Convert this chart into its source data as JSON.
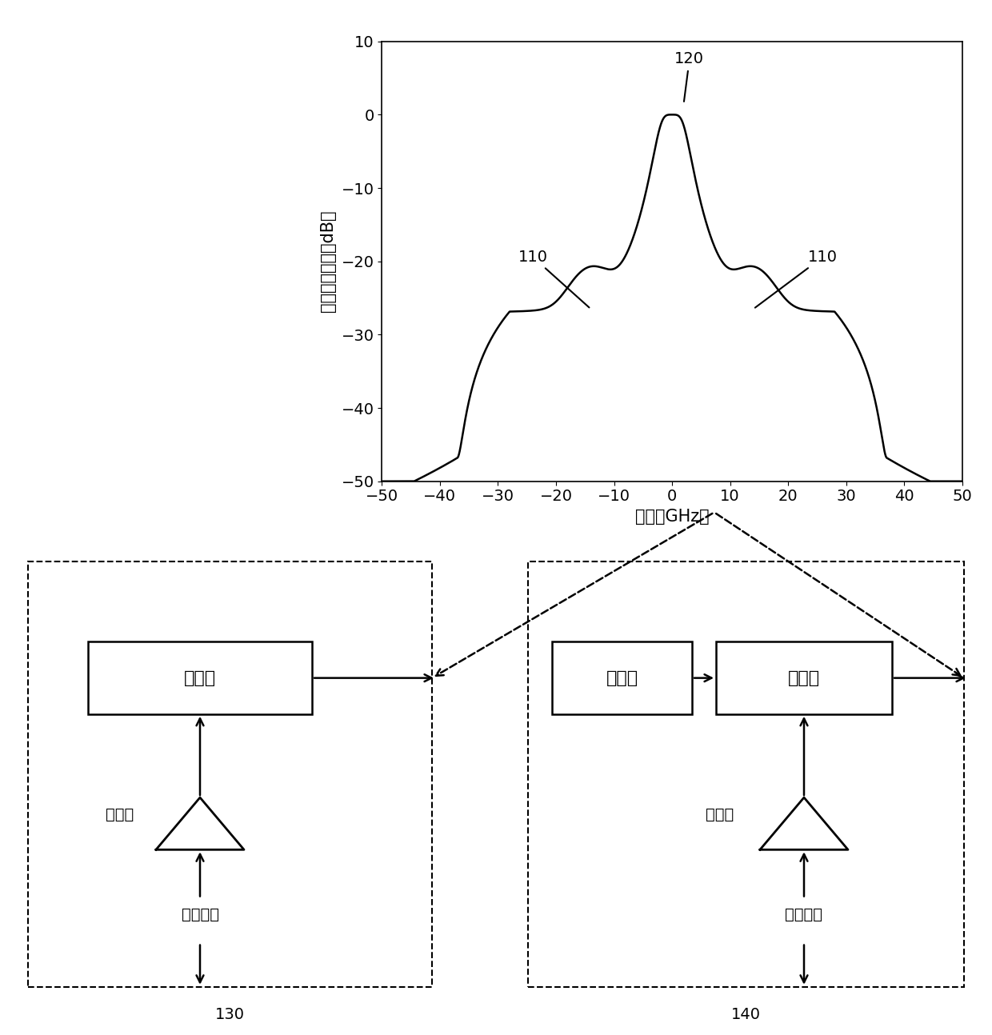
{
  "plot_xlim": [
    -50,
    50
  ],
  "plot_ylim": [
    -50,
    10
  ],
  "plot_xticks": [
    -50,
    -40,
    -30,
    -20,
    -10,
    0,
    10,
    20,
    30,
    40,
    50
  ],
  "plot_yticks": [
    -50,
    -40,
    -30,
    -20,
    -10,
    0,
    10
  ],
  "xlabel": "频率（GHz）",
  "ylabel": "归一化光功率（dB）",
  "label_120": "120",
  "label_110_left": "110",
  "label_110_right": "110",
  "label_130": "130",
  "label_140": "140",
  "laser_text": "激光器",
  "modulator_text": "调制器",
  "driver_text": "驱动器",
  "signal_text": "数字信号",
  "bg_color": "#ffffff",
  "line_color": "#000000",
  "line_width": 1.8
}
